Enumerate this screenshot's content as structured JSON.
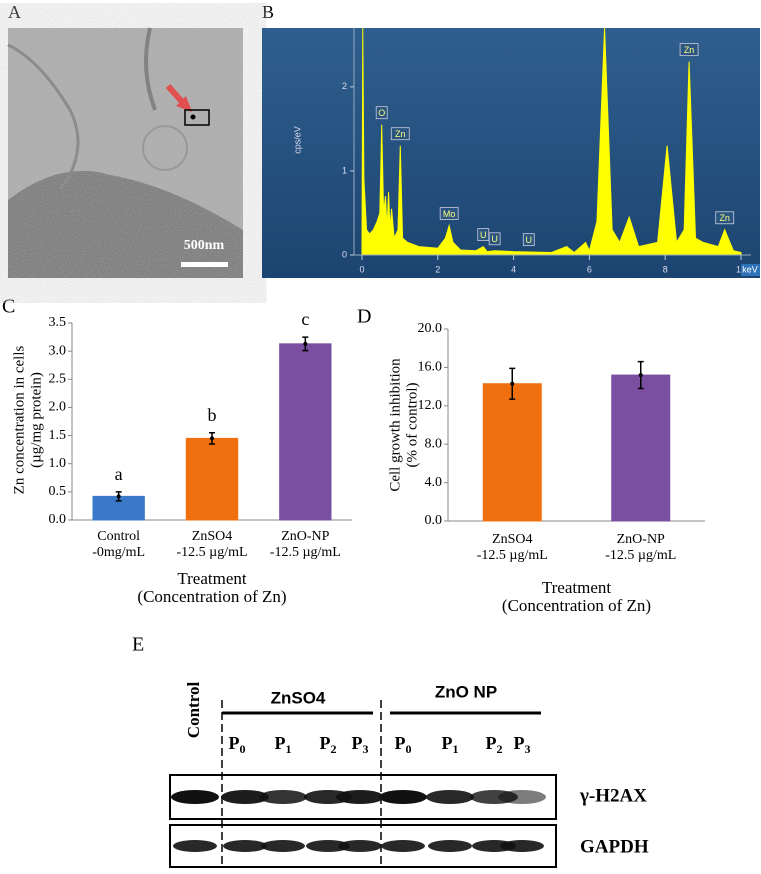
{
  "panels": {
    "a": "A",
    "b": "B",
    "c": "C",
    "d": "D",
    "e": "E"
  },
  "micrograph": {
    "scale_bar": "500nm"
  },
  "chart_data": [
    {
      "type": "bar",
      "ylabel": [
        "Zn concentration in cells",
        "(µg/mg protein)"
      ],
      "xlabel": [
        "Treatment",
        "(Concentration of Zn)"
      ],
      "categories": [
        [
          "Control",
          "-0mg/mL"
        ],
        [
          "ZnSO4",
          "-12.5 µg/mL"
        ],
        [
          "ZnO-NP",
          "-12.5 µg/mL"
        ]
      ],
      "values": [
        0.42,
        1.45,
        3.13
      ],
      "errors": [
        0.08,
        0.1,
        0.12
      ],
      "letters": [
        "a",
        "b",
        "c"
      ],
      "colors": [
        "#3a78c8",
        "#f07010",
        "#7a4fa0"
      ],
      "ylim": [
        0,
        3.5
      ],
      "yticks": [
        {
          "value": 0,
          "label": "0.0"
        },
        {
          "value": 0.5,
          "label": "0.5"
        },
        {
          "value": 1,
          "label": "1.0"
        },
        {
          "value": 1.5,
          "label": "1.5"
        },
        {
          "value": 2,
          "label": "2.0"
        },
        {
          "value": 2.5,
          "label": "2.5"
        },
        {
          "value": 3,
          "label": "3.0"
        },
        {
          "value": 3.5,
          "label": "3.5"
        }
      ]
    },
    {
      "type": "bar",
      "ylabel": [
        "Cell growth inhibition",
        "(% of control)"
      ],
      "xlabel": [
        "Treatment",
        "(Concentration of Zn)"
      ],
      "categories": [
        [
          "ZnSO4",
          "-12.5 µg/mL"
        ],
        [
          "ZnO-NP",
          "-12.5 µg/mL"
        ]
      ],
      "values": [
        14.3,
        15.2
      ],
      "errors": [
        1.6,
        1.4
      ],
      "colors": [
        "#f07010",
        "#7a4fa0"
      ],
      "ylim": [
        0,
        20
      ],
      "yticks": [
        {
          "value": 0,
          "label": "0.0"
        },
        {
          "value": 4,
          "label": "4.0"
        },
        {
          "value": 8,
          "label": "8.0"
        },
        {
          "value": 12,
          "label": "12.0"
        },
        {
          "value": 16,
          "label": "16.0"
        },
        {
          "value": 20,
          "label": "20.0"
        }
      ]
    },
    {
      "type": "area",
      "ylabel": "cps/eV",
      "xlabel": "keV",
      "color": "#ffff00",
      "x": [
        0,
        0.02,
        0.05,
        0.12,
        0.2,
        0.3,
        0.4,
        0.47,
        0.52,
        0.57,
        0.62,
        0.66,
        0.7,
        0.74,
        0.78,
        0.85,
        0.95,
        1.01,
        1.07,
        1.2,
        1.5,
        2.0,
        2.2,
        2.3,
        2.4,
        2.6,
        3.0,
        3.2,
        3.3,
        3.5,
        4.0,
        5.0,
        5.4,
        5.6,
        5.9,
        6.0,
        6.2,
        6.4,
        6.6,
        6.8,
        7.05,
        7.3,
        7.8,
        8.05,
        8.3,
        8.5,
        8.63,
        8.8,
        9.0,
        9.4,
        9.57,
        9.8,
        10
      ],
      "values": [
        0.1,
        2.7,
        0.9,
        0.3,
        0.25,
        0.3,
        0.4,
        0.5,
        1.55,
        0.5,
        0.7,
        0.3,
        0.75,
        0.3,
        0.55,
        0.2,
        0.3,
        1.3,
        0.2,
        0.15,
        0.1,
        0.08,
        0.2,
        0.35,
        0.15,
        0.06,
        0.05,
        0.1,
        0.04,
        0.05,
        0.04,
        0.03,
        0.1,
        0.03,
        0.15,
        0.05,
        0.4,
        2.7,
        0.3,
        0.15,
        0.45,
        0.1,
        0.15,
        1.3,
        0.15,
        0.3,
        2.3,
        0.2,
        0.15,
        0.1,
        0.3,
        0.05,
        0.03
      ],
      "annotations": [
        {
          "text": "O",
          "x": 0.52,
          "y": 1.55
        },
        {
          "text": "Zn",
          "x": 1.01,
          "y": 1.3
        },
        {
          "text": "Mo",
          "x": 2.3,
          "y": 0.35
        },
        {
          "text": "U",
          "x": 3.2,
          "y": 0.1
        },
        {
          "text": "U",
          "x": 3.5,
          "y": 0.05
        },
        {
          "text": "U",
          "x": 4.4,
          "y": 0.04
        },
        {
          "text": "Zn",
          "x": 8.63,
          "y": 2.3
        },
        {
          "text": "Zn",
          "x": 9.57,
          "y": 0.3
        }
      ],
      "xlim": [
        0,
        10
      ],
      "xticks": [
        0,
        2,
        4,
        6,
        8,
        10
      ],
      "ylim": [
        0,
        2.7
      ],
      "yticks": [
        0,
        1,
        2
      ]
    }
  ],
  "blot": {
    "control": "Control",
    "groups": [
      "ZnSO4",
      "ZnO NP"
    ],
    "lanes": [
      [
        "P",
        "0"
      ],
      [
        "P",
        "1"
      ],
      [
        "P",
        "2"
      ],
      [
        "P",
        "3"
      ],
      [
        "P",
        "0"
      ],
      [
        "P",
        "1"
      ],
      [
        "P",
        "2"
      ],
      [
        "P",
        "3"
      ]
    ],
    "rows": [
      "γ-H2AX",
      "GAPDH"
    ]
  }
}
